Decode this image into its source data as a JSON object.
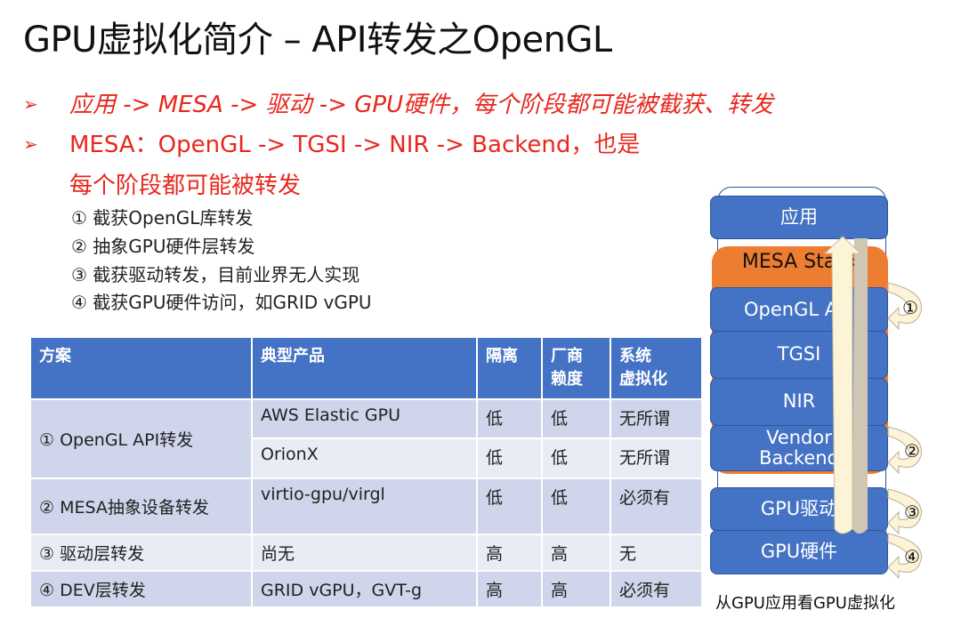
{
  "title": "GPU虚拟化简介 – API转发之OpenGL",
  "bullets": [
    {
      "marker": "➢",
      "text": "应用 -> MESA -> 驱动 -> GPU硬件，每个阶段都可能被截获、转发"
    },
    {
      "marker": "➢",
      "text": "MESA：OpenGL -> TGSI -> NIR -> Backend，也是",
      "continuation": "每个阶段都可能被转发"
    }
  ],
  "subitems": [
    "① 截获OpenGL库转发",
    "② 抽象GPU硬件层转发",
    "③ 截获驱动转发，目前业界无人实现",
    "④ 截获GPU硬件访问，如GRID vGPU"
  ],
  "table": {
    "headers": [
      "方案",
      "典型产品",
      "隔离",
      "厂商\n赖度",
      "系统\n虚拟化"
    ],
    "rows": [
      {
        "scheme": "① OpenGL API转发",
        "products": [
          [
            "AWS Elastic GPU",
            "低",
            "低",
            "无所谓"
          ],
          [
            "OrionX",
            "低",
            "低",
            "无所谓"
          ]
        ]
      },
      {
        "scheme": "② MESA抽象设备转发",
        "products": [
          [
            "virtio-gpu/virgl",
            "低",
            "低",
            "必须有"
          ]
        ]
      },
      {
        "scheme": "③ 驱动层转发",
        "products": [
          [
            "尚无",
            "高",
            "高",
            "无"
          ]
        ]
      },
      {
        "scheme": "④ DEV层转发",
        "products": [
          [
            "GRID vGPU，GVT-g",
            "高",
            "高",
            "必须有"
          ]
        ]
      }
    ]
  },
  "diagram": {
    "layers": [
      "应用",
      "MESA Stack",
      "OpenGL API",
      "TGSI",
      "NIR",
      "Vendor\nBackend",
      "GPU驱动",
      "GPU硬件"
    ],
    "markers": [
      "①",
      "②",
      "③",
      "④"
    ],
    "caption": "从GPU应用看GPU虚拟化",
    "colors": {
      "layer": "#4472c4",
      "mesa": "#ed7d31",
      "arrow": "#fdf3d6",
      "arrow_back": "#cfc7b4"
    }
  }
}
